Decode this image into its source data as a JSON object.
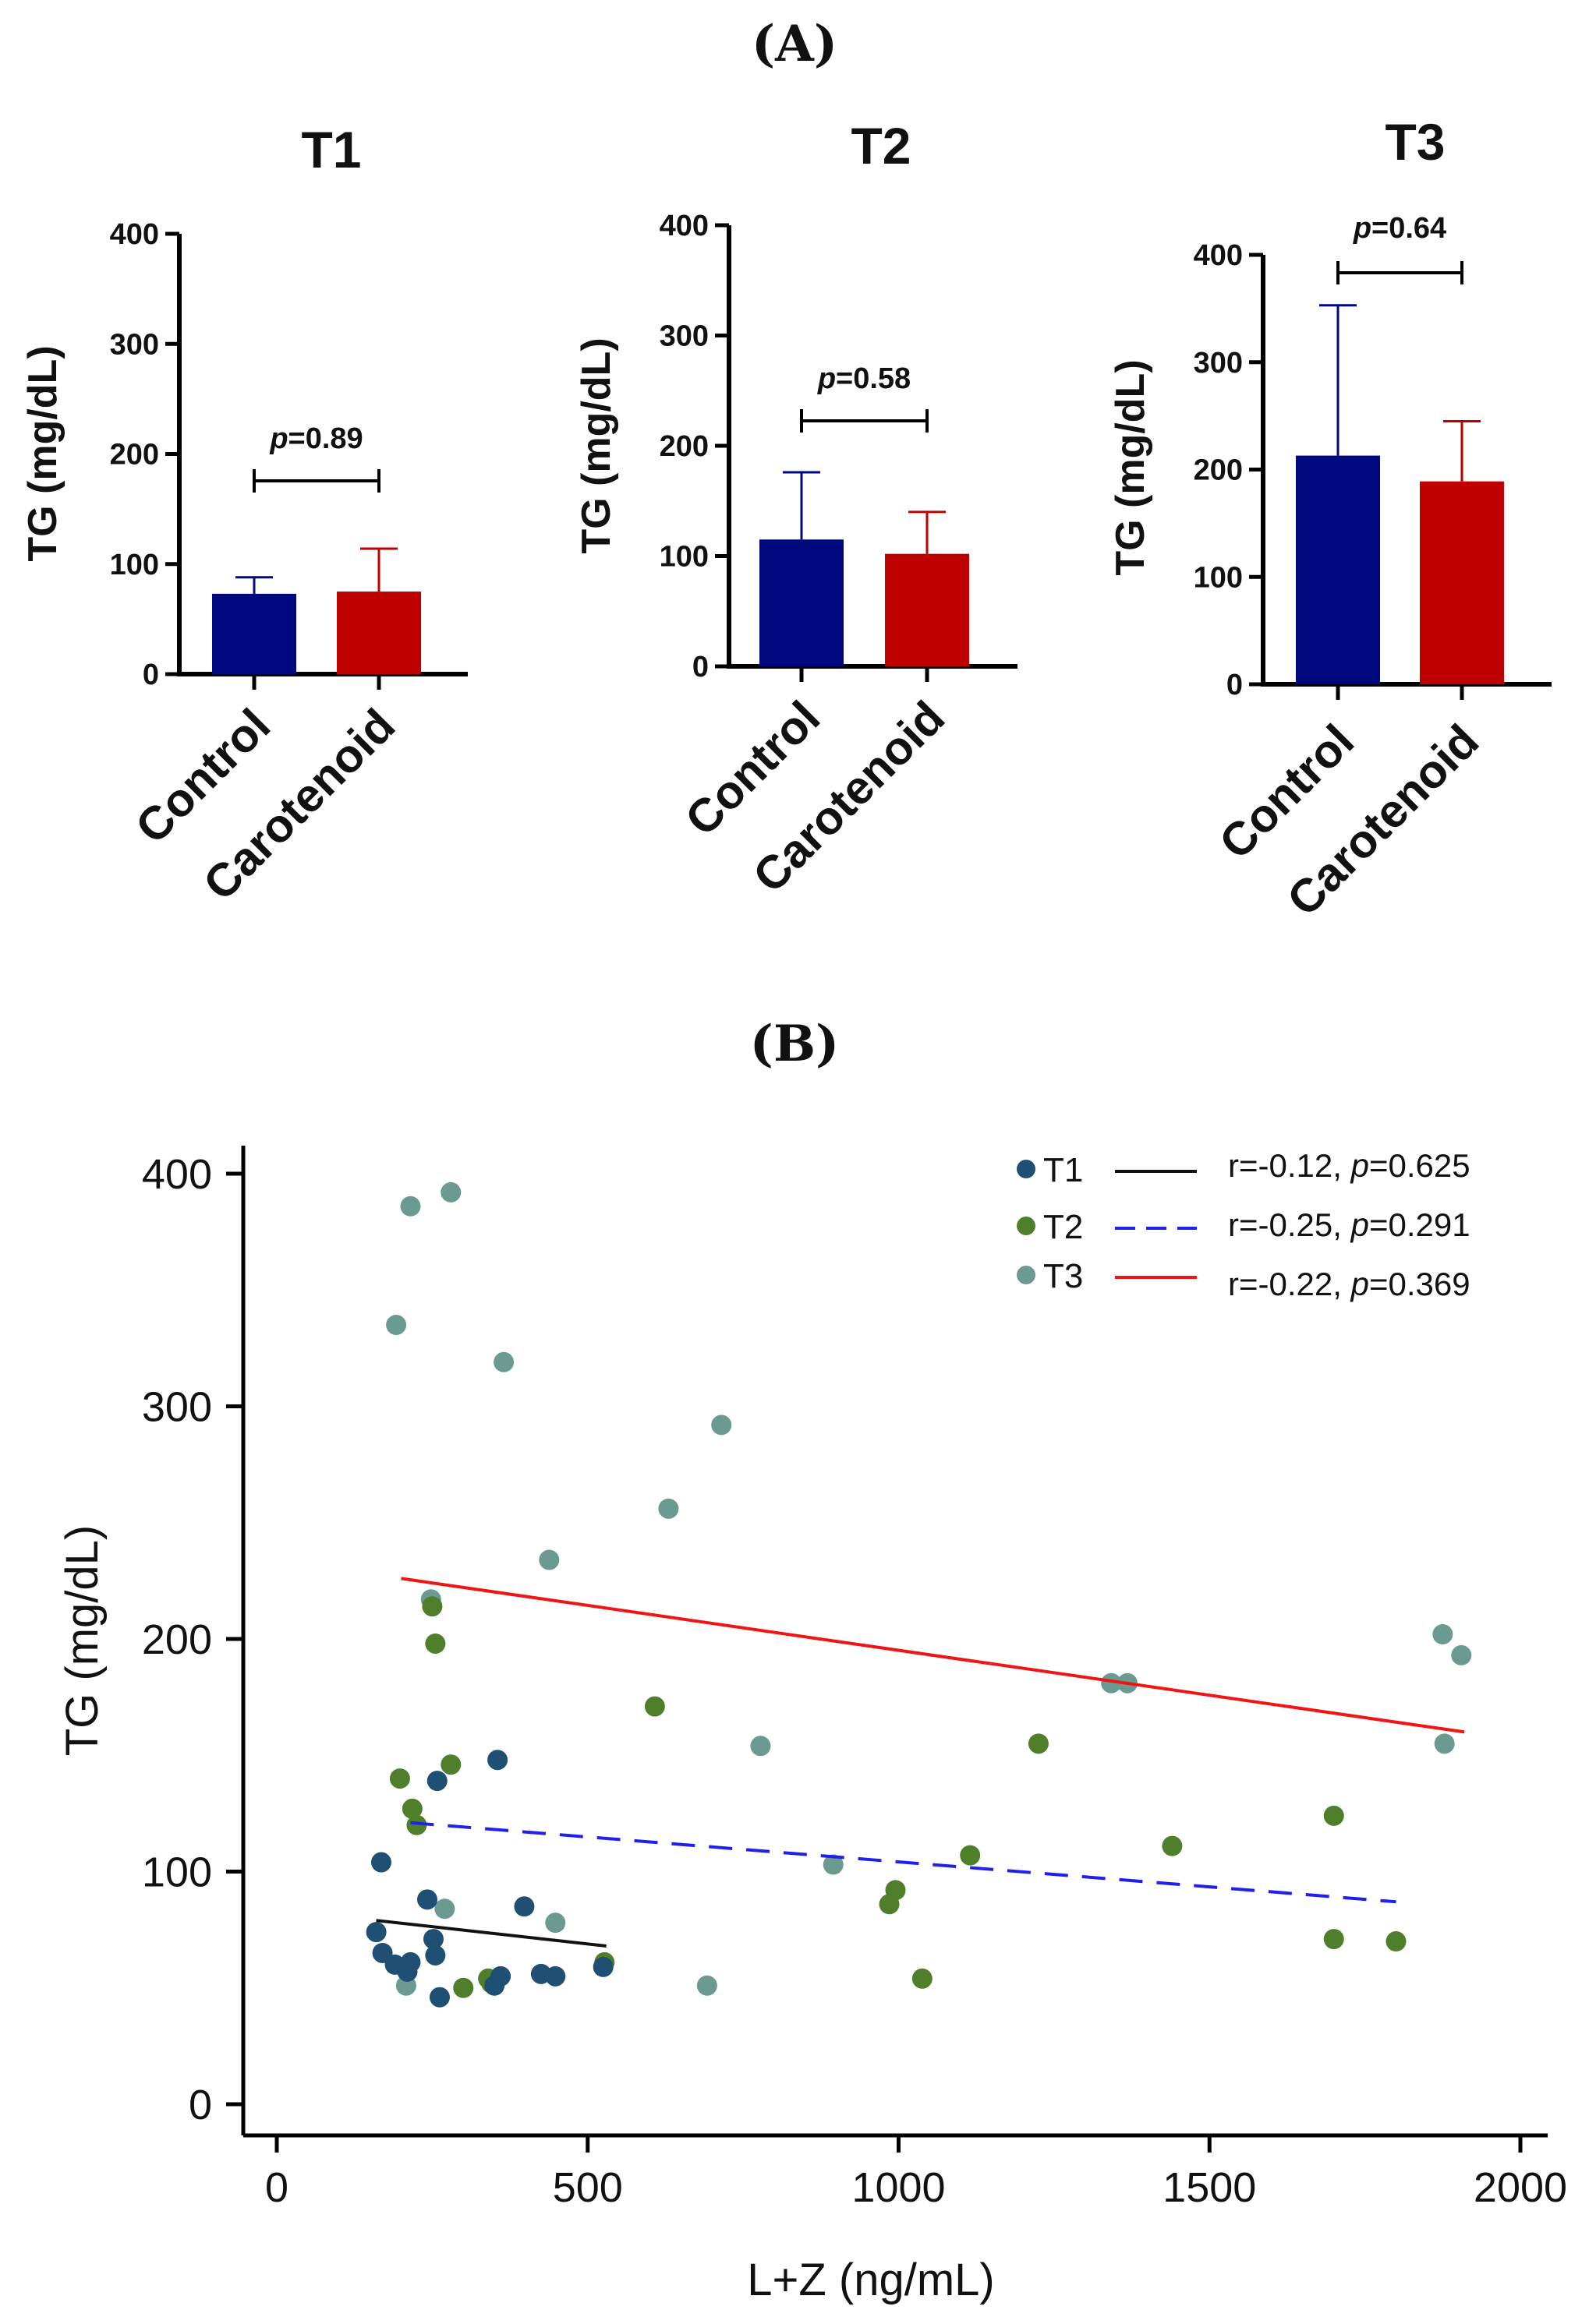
{
  "panel_labels": {
    "a": "(A)",
    "b": "(B)"
  },
  "colors": {
    "control": "#00087e",
    "carotenoid": "#be0000",
    "t1_points": "#1f4f72",
    "t2_points": "#4f7f2a",
    "t3_points": "#6b9a90",
    "t1_line": "#111111",
    "t2_line": "#1f1ff0",
    "t3_line": "#f01414"
  },
  "chart_data": [
    {
      "type": "bar",
      "title": "T1",
      "ylabel": "TG (mg/dL)",
      "xlabel": "",
      "ylim": [
        0,
        400
      ],
      "yticks": [
        "0",
        "100",
        "200",
        "300",
        "400"
      ],
      "categories": [
        "Control",
        "Carotenoid"
      ],
      "values": [
        73,
        75
      ],
      "errors": [
        15,
        39
      ],
      "p_label": {
        "prefix": "p",
        "value": "=0.89"
      }
    },
    {
      "type": "bar",
      "title": "T2",
      "ylabel": "TG (mg/dL)",
      "xlabel": "",
      "ylim": [
        0,
        400
      ],
      "yticks": [
        "0",
        "100",
        "200",
        "300",
        "400"
      ],
      "categories": [
        "Control",
        "Carotenoid"
      ],
      "values": [
        115,
        102
      ],
      "errors": [
        61,
        38
      ],
      "p_label": {
        "prefix": "p",
        "value": "=0.58"
      }
    },
    {
      "type": "bar",
      "title": "T3",
      "ylabel": "TG (mg/dL)",
      "xlabel": "",
      "ylim": [
        0,
        400
      ],
      "yticks": [
        "0",
        "100",
        "200",
        "300",
        "400"
      ],
      "categories": [
        "Control",
        "Carotenoid"
      ],
      "values": [
        213,
        189
      ],
      "errors": [
        140,
        56
      ],
      "p_label": {
        "prefix": "p",
        "value": "=0.64"
      }
    },
    {
      "type": "scatter",
      "title": "",
      "xlabel": "L+Z (ng/mL)",
      "ylabel": "TG (mg/dL)",
      "xlim": [
        -50,
        2050
      ],
      "ylim": [
        -30,
        415
      ],
      "xticks": [
        "0",
        "500",
        "1000",
        "1500",
        "2000"
      ],
      "yticks": [
        "0",
        "100",
        "200",
        "300",
        "400"
      ],
      "series": [
        {
          "name": "T1",
          "stats": {
            "r": "r=-0.12, ",
            "p_prefix": "p",
            "p_value": "=0.625"
          },
          "fit": {
            "x": [
              160,
              530
            ],
            "y": [
              79,
              68
            ]
          },
          "points": [
            [
              160,
              74
            ],
            [
              168,
              104
            ],
            [
              170,
              65
            ],
            [
              190,
              60
            ],
            [
              210,
              57
            ],
            [
              215,
              61
            ],
            [
              242,
              88
            ],
            [
              252,
              71
            ],
            [
              255,
              64
            ],
            [
              258,
              139
            ],
            [
              262,
              46
            ],
            [
              355,
              148
            ],
            [
              398,
              85
            ],
            [
              425,
              56
            ],
            [
              448,
              55
            ],
            [
              525,
              59
            ],
            [
              360,
              55
            ],
            [
              350,
              51
            ]
          ]
        },
        {
          "name": "T2",
          "stats": {
            "r": "r=-0.25, ",
            "p_prefix": "p",
            "p_value": "=0.291"
          },
          "fit": {
            "x": [
              215,
              1800
            ],
            "y": [
              121,
              87
            ]
          },
          "points": [
            [
              198,
              140
            ],
            [
              218,
              127
            ],
            [
              225,
              120
            ],
            [
              255,
              198
            ],
            [
              250,
              214
            ],
            [
              280,
              146
            ],
            [
              300,
              50
            ],
            [
              340,
              54
            ],
            [
              345,
              52
            ],
            [
              527,
              61
            ],
            [
              608,
              171
            ],
            [
              985,
              86
            ],
            [
              995,
              92
            ],
            [
              1038,
              54
            ],
            [
              1115,
              107
            ],
            [
              1225,
              155
            ],
            [
              1440,
              111
            ],
            [
              1700,
              124
            ],
            [
              1700,
              71
            ],
            [
              1800,
              70
            ]
          ]
        },
        {
          "name": "T3",
          "stats": {
            "r": "r=-0.22, ",
            "p_prefix": "p",
            "p_value": "=0.369"
          },
          "fit": {
            "x": [
              200,
              1910
            ],
            "y": [
              226,
              160
            ]
          },
          "points": [
            [
              192,
              335
            ],
            [
              215,
              386
            ],
            [
              280,
              392
            ],
            [
              365,
              319
            ],
            [
              248,
              217
            ],
            [
              438,
              234
            ],
            [
              630,
              256
            ],
            [
              715,
              292
            ],
            [
              778,
              154
            ],
            [
              895,
              103
            ],
            [
              1342,
              181
            ],
            [
              1368,
              181
            ],
            [
              1875,
              202
            ],
            [
              1878,
              155
            ],
            [
              1905,
              193
            ],
            [
              208,
              51
            ],
            [
              270,
              84
            ],
            [
              448,
              78
            ],
            [
              692,
              51
            ]
          ]
        }
      ]
    }
  ]
}
